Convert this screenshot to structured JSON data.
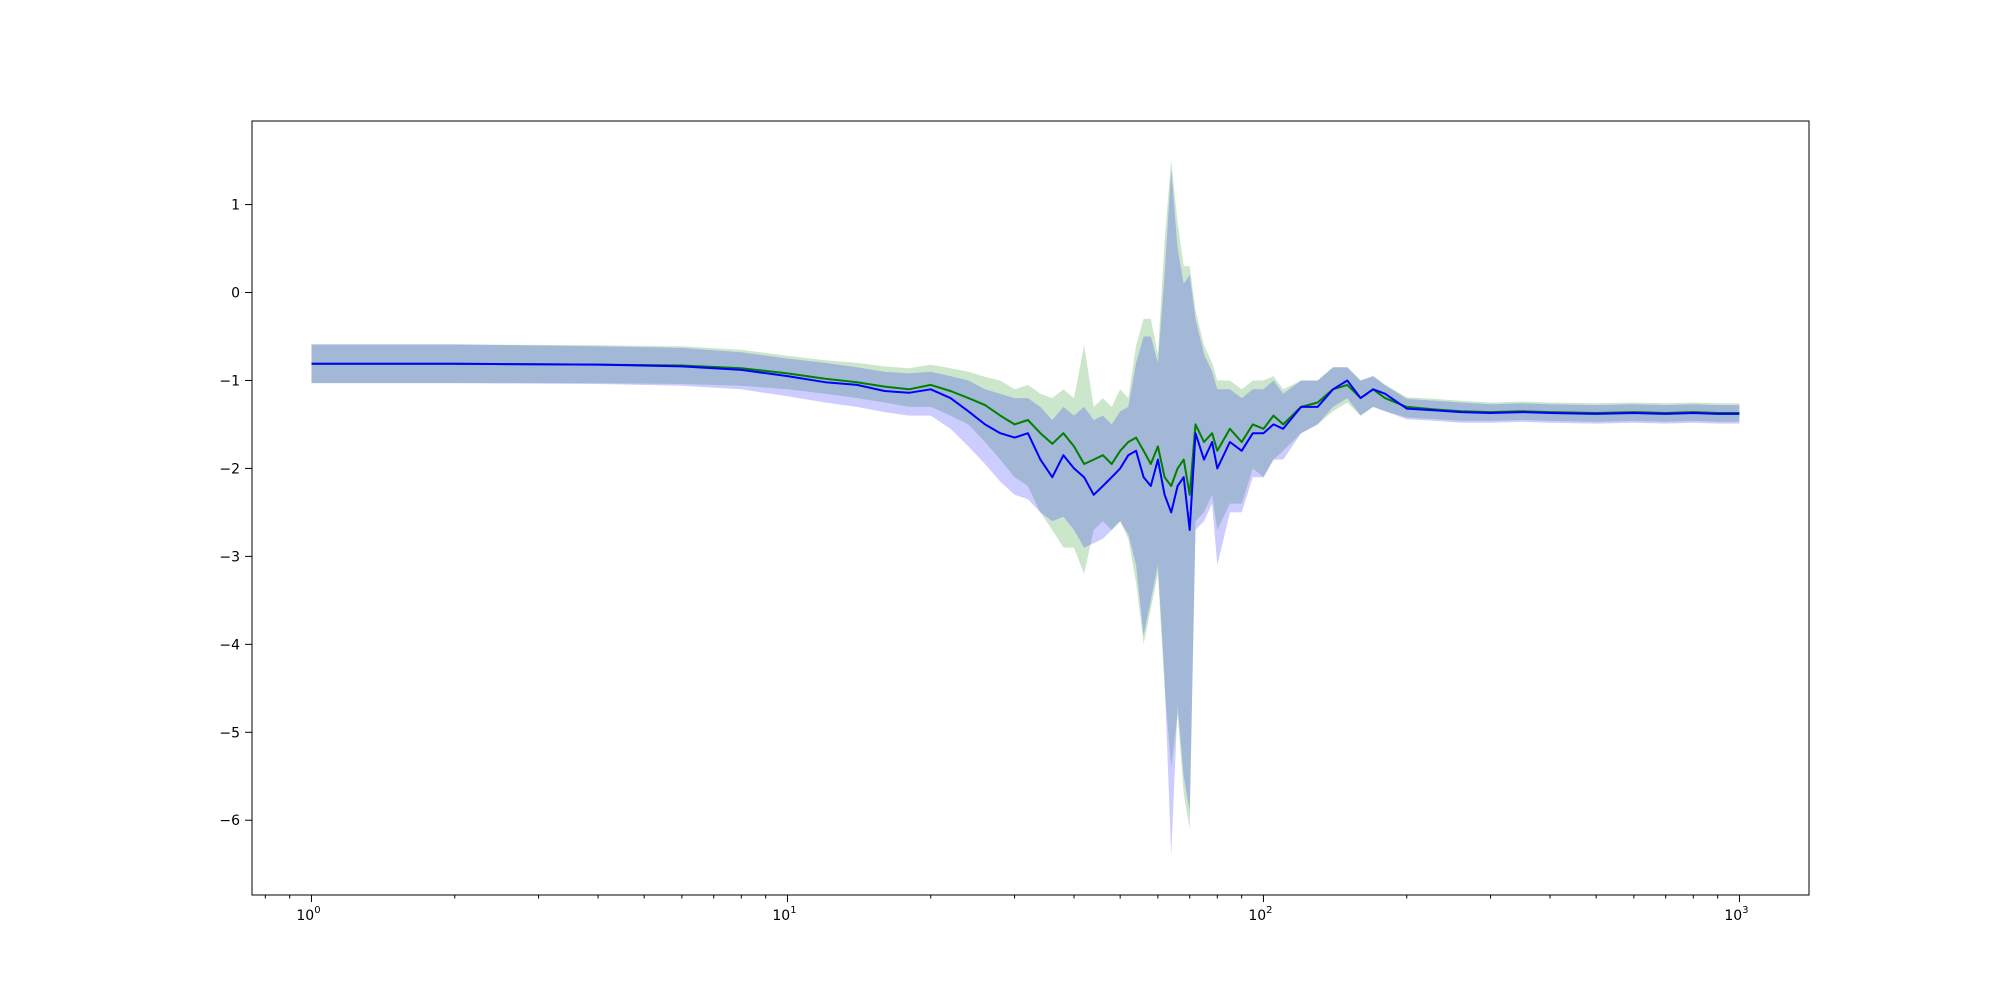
{
  "chart_data": {
    "type": "line",
    "title": "",
    "xlabel": "",
    "ylabel": "",
    "xscale": "log",
    "xlim": [
      0.75,
      1400
    ],
    "ylim": [
      -6.85,
      1.95
    ],
    "grid": false,
    "legend": "none",
    "xticks": [
      {
        "value": 1,
        "base": "10",
        "exp": "0"
      },
      {
        "value": 10,
        "base": "10",
        "exp": "1"
      },
      {
        "value": 100,
        "base": "10",
        "exp": "2"
      },
      {
        "value": 1000,
        "base": "10",
        "exp": "3"
      }
    ],
    "yticks": [
      {
        "value": 1,
        "label": "1"
      },
      {
        "value": 0,
        "label": "0"
      },
      {
        "value": -1,
        "label": "−1"
      },
      {
        "value": -2,
        "label": "−2"
      },
      {
        "value": -3,
        "label": "−3"
      },
      {
        "value": -4,
        "label": "−4"
      },
      {
        "value": -5,
        "label": "−5"
      },
      {
        "value": -6,
        "label": "−6"
      }
    ],
    "x": [
      1,
      2,
      4,
      6,
      8,
      10,
      12,
      14,
      16,
      18,
      20,
      22,
      24,
      26,
      28,
      30,
      32,
      34,
      36,
      38,
      40,
      42,
      44,
      46,
      48,
      50,
      52,
      54,
      56,
      58,
      60,
      62,
      64,
      66,
      68,
      70,
      72,
      75,
      78,
      80,
      85,
      90,
      95,
      100,
      105,
      110,
      120,
      130,
      140,
      150,
      160,
      170,
      180,
      200,
      230,
      260,
      300,
      350,
      400,
      500,
      600,
      700,
      800,
      900,
      1000
    ],
    "series": [
      {
        "color": "#008000",
        "band_color": "#008000",
        "values": [
          -0.81,
          -0.81,
          -0.82,
          -0.83,
          -0.86,
          -0.92,
          -0.98,
          -1.02,
          -1.07,
          -1.1,
          -1.05,
          -1.12,
          -1.2,
          -1.28,
          -1.4,
          -1.5,
          -1.45,
          -1.6,
          -1.72,
          -1.6,
          -1.75,
          -1.95,
          -1.9,
          -1.85,
          -1.95,
          -1.8,
          -1.7,
          -1.65,
          -1.8,
          -1.95,
          -1.75,
          -2.1,
          -2.2,
          -2.0,
          -1.9,
          -2.3,
          -1.5,
          -1.7,
          -1.6,
          -1.8,
          -1.55,
          -1.7,
          -1.5,
          -1.55,
          -1.4,
          -1.5,
          -1.3,
          -1.25,
          -1.1,
          -1.05,
          -1.2,
          -1.1,
          -1.2,
          -1.3,
          -1.33,
          -1.35,
          -1.36,
          -1.35,
          -1.36,
          -1.37,
          -1.36,
          -1.37,
          -1.36,
          -1.37,
          -1.37
        ],
        "lower": [
          -1.03,
          -1.03,
          -1.03,
          -1.04,
          -1.06,
          -1.1,
          -1.15,
          -1.2,
          -1.25,
          -1.3,
          -1.3,
          -1.4,
          -1.5,
          -1.7,
          -1.9,
          -2.1,
          -2.2,
          -2.5,
          -2.7,
          -2.9,
          -2.9,
          -3.2,
          -2.7,
          -2.6,
          -2.7,
          -2.6,
          -2.8,
          -3.3,
          -4.0,
          -3.6,
          -3.2,
          -4.5,
          -5.4,
          -4.8,
          -5.7,
          -6.1,
          -2.6,
          -2.5,
          -2.3,
          -2.7,
          -2.4,
          -2.4,
          -2.0,
          -2.1,
          -1.9,
          -1.8,
          -1.6,
          -1.5,
          -1.35,
          -1.25,
          -1.4,
          -1.3,
          -1.35,
          -1.42,
          -1.44,
          -1.46,
          -1.46,
          -1.45,
          -1.46,
          -1.47,
          -1.46,
          -1.47,
          -1.46,
          -1.47,
          -1.47
        ],
        "upper": [
          -0.59,
          -0.59,
          -0.6,
          -0.61,
          -0.65,
          -0.72,
          -0.77,
          -0.8,
          -0.84,
          -0.86,
          -0.82,
          -0.86,
          -0.9,
          -0.96,
          -1.0,
          -1.1,
          -1.05,
          -1.15,
          -1.2,
          -1.1,
          -1.2,
          -0.6,
          -1.3,
          -1.2,
          -1.3,
          -1.1,
          -1.2,
          -0.6,
          -0.3,
          -0.3,
          -0.7,
          0.6,
          1.5,
          0.8,
          0.3,
          0.3,
          -0.2,
          -0.6,
          -0.8,
          -1.0,
          -1.0,
          -1.1,
          -1.0,
          -1.0,
          -0.95,
          -1.1,
          -1.0,
          -1.0,
          -0.85,
          -0.85,
          -1.0,
          -0.95,
          -1.05,
          -1.19,
          -1.21,
          -1.23,
          -1.25,
          -1.24,
          -1.25,
          -1.26,
          -1.25,
          -1.26,
          -1.25,
          -1.26,
          -1.26
        ]
      },
      {
        "color": "#0000ff",
        "band_color": "#0000ff",
        "values": [
          -0.81,
          -0.81,
          -0.82,
          -0.84,
          -0.88,
          -0.95,
          -1.02,
          -1.05,
          -1.12,
          -1.14,
          -1.1,
          -1.2,
          -1.35,
          -1.5,
          -1.6,
          -1.65,
          -1.6,
          -1.9,
          -2.1,
          -1.85,
          -2.0,
          -2.1,
          -2.3,
          -2.2,
          -2.1,
          -2.0,
          -1.85,
          -1.8,
          -2.1,
          -2.2,
          -1.9,
          -2.3,
          -2.5,
          -2.2,
          -2.1,
          -2.7,
          -1.6,
          -1.9,
          -1.7,
          -2.0,
          -1.7,
          -1.8,
          -1.6,
          -1.6,
          -1.5,
          -1.55,
          -1.3,
          -1.3,
          -1.1,
          -1.0,
          -1.2,
          -1.1,
          -1.15,
          -1.32,
          -1.34,
          -1.36,
          -1.37,
          -1.36,
          -1.37,
          -1.38,
          -1.37,
          -1.38,
          -1.37,
          -1.38,
          -1.38
        ],
        "lower": [
          -1.03,
          -1.03,
          -1.04,
          -1.06,
          -1.1,
          -1.18,
          -1.25,
          -1.3,
          -1.36,
          -1.4,
          -1.4,
          -1.55,
          -1.75,
          -1.95,
          -2.15,
          -2.3,
          -2.35,
          -2.5,
          -2.6,
          -2.55,
          -2.7,
          -2.9,
          -2.85,
          -2.8,
          -2.7,
          -2.6,
          -2.75,
          -3.1,
          -3.9,
          -3.5,
          -3.1,
          -4.4,
          -6.4,
          -4.7,
          -5.5,
          -5.9,
          -2.7,
          -2.6,
          -2.4,
          -3.1,
          -2.5,
          -2.5,
          -2.1,
          -2.1,
          -1.9,
          -1.9,
          -1.6,
          -1.5,
          -1.3,
          -1.2,
          -1.4,
          -1.3,
          -1.35,
          -1.44,
          -1.46,
          -1.48,
          -1.48,
          -1.47,
          -1.48,
          -1.49,
          -1.48,
          -1.49,
          -1.48,
          -1.49,
          -1.49
        ],
        "upper": [
          -0.59,
          -0.59,
          -0.61,
          -0.63,
          -0.68,
          -0.75,
          -0.8,
          -0.85,
          -0.9,
          -0.92,
          -0.9,
          -0.95,
          -1.0,
          -1.1,
          -1.15,
          -1.2,
          -1.2,
          -1.3,
          -1.45,
          -1.3,
          -1.4,
          -1.3,
          -1.45,
          -1.4,
          -1.5,
          -1.35,
          -1.3,
          -0.8,
          -0.5,
          -0.5,
          -0.8,
          0.2,
          1.4,
          0.5,
          0.1,
          0.2,
          -0.3,
          -0.7,
          -0.9,
          -1.1,
          -1.1,
          -1.2,
          -1.1,
          -1.1,
          -1.0,
          -1.15,
          -1.0,
          -1.0,
          -0.85,
          -0.85,
          -1.0,
          -0.95,
          -1.05,
          -1.21,
          -1.23,
          -1.25,
          -1.27,
          -1.26,
          -1.27,
          -1.28,
          -1.27,
          -1.28,
          -1.27,
          -1.28,
          -1.28
        ]
      }
    ]
  }
}
